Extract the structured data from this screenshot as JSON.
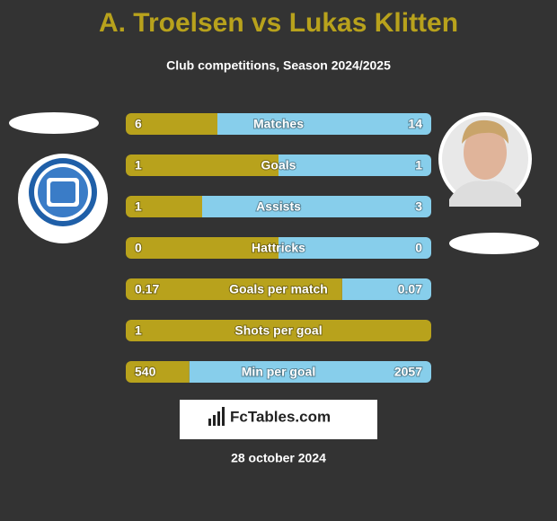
{
  "header": {
    "title": "A. Troelsen vs Lukas Klitten",
    "subtitle": "Club competitions, Season 2024/2025"
  },
  "rows": [
    {
      "label": "Matches",
      "left": 6,
      "right": 14
    },
    {
      "label": "Goals",
      "left": 1,
      "right": 1
    },
    {
      "label": "Assists",
      "left": 1,
      "right": 3
    },
    {
      "label": "Hattricks",
      "left": 0,
      "right": 0
    },
    {
      "label": "Goals per match",
      "left": 0.17,
      "right": 0.07
    },
    {
      "label": "Shots per goal",
      "left": 1,
      "right": null
    },
    {
      "label": "Min per goal",
      "left": 540,
      "right": 2057
    }
  ],
  "colors": {
    "left": "#b8a21c",
    "right": "#87ceeb"
  },
  "footer": {
    "brand": "FcTables.com",
    "date": "28 october 2024"
  }
}
